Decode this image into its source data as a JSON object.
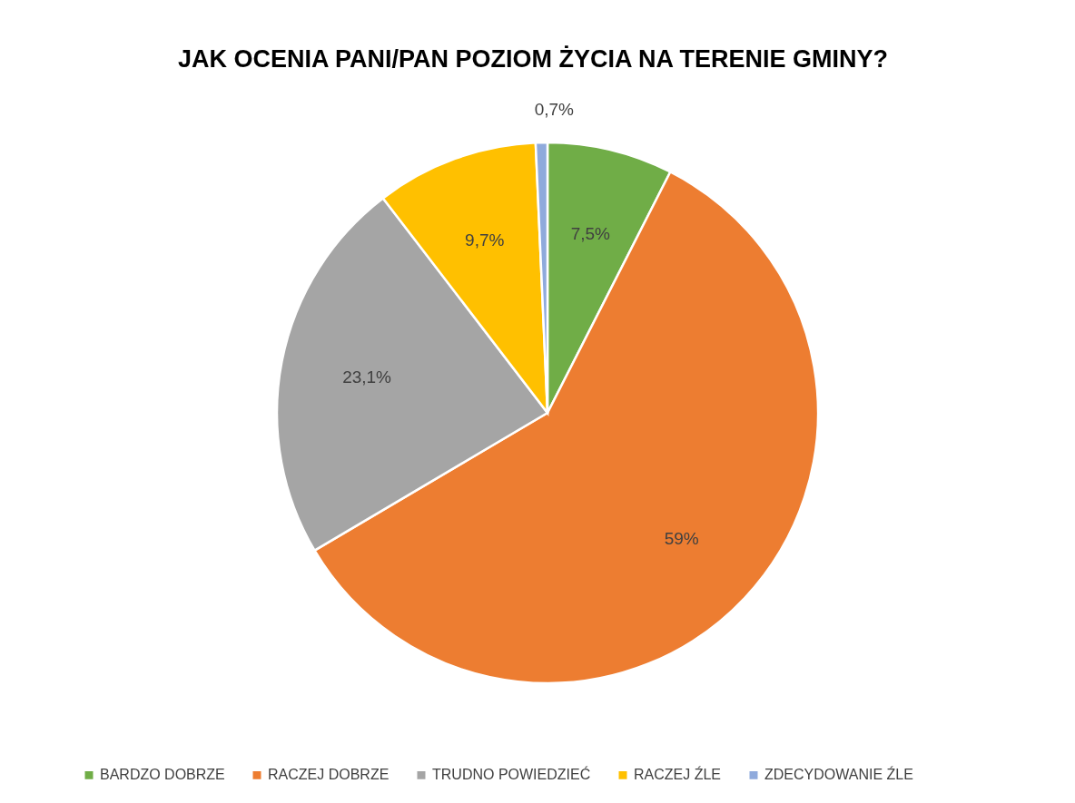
{
  "chart_data": {
    "type": "pie",
    "title": "JAK OCENIA PANI/PAN POZIOM ŻYCIA NA TERENIE GMINY?",
    "categories": [
      "BARDZO DOBRZE",
      "RACZEJ DOBRZE",
      "TRUDNO POWIEDZIEĆ",
      "RACZEJ ŹLE",
      "ZDECYDOWANIE ŹLE"
    ],
    "values": [
      7.5,
      59,
      23.1,
      9.7,
      0.7
    ],
    "colors": [
      "#70ad47",
      "#ed7d31",
      "#a5a5a5",
      "#ffc000",
      "#8faadc"
    ],
    "value_labels": [
      "7,5%",
      "59%",
      "23,1%",
      "9,7%",
      "0,7%"
    ],
    "legend": "bottom"
  }
}
